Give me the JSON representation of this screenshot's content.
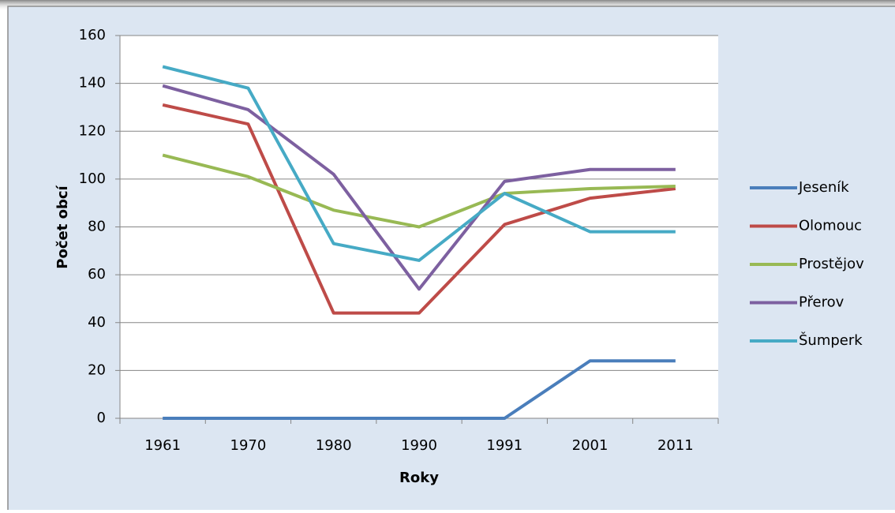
{
  "chart_data": {
    "type": "line",
    "x_label": "Roky",
    "y_label": "Počet obcí",
    "categories": [
      "1961",
      "1970",
      "1980",
      "1990",
      "1991",
      "2001",
      "2011"
    ],
    "series": [
      {
        "name": "Jeseník",
        "color": "#4a7ebb",
        "values": [
          0,
          0,
          0,
          0,
          0,
          24,
          24
        ]
      },
      {
        "name": "Olomouc",
        "color": "#be4b48",
        "values": [
          131,
          123,
          44,
          44,
          81,
          92,
          96
        ]
      },
      {
        "name": "Prostějov",
        "color": "#98b954",
        "values": [
          110,
          101,
          87,
          80,
          94,
          96,
          97
        ]
      },
      {
        "name": "Přerov",
        "color": "#7d60a0",
        "values": [
          139,
          129,
          102,
          54,
          99,
          104,
          104
        ]
      },
      {
        "name": "Šumperk",
        "color": "#46aac5",
        "values": [
          147,
          138,
          73,
          66,
          94,
          78,
          78
        ]
      }
    ],
    "ylim": [
      0,
      160
    ],
    "yticks": [
      0,
      20,
      40,
      60,
      80,
      100,
      120,
      140,
      160
    ],
    "grid": true,
    "legend": "right"
  }
}
